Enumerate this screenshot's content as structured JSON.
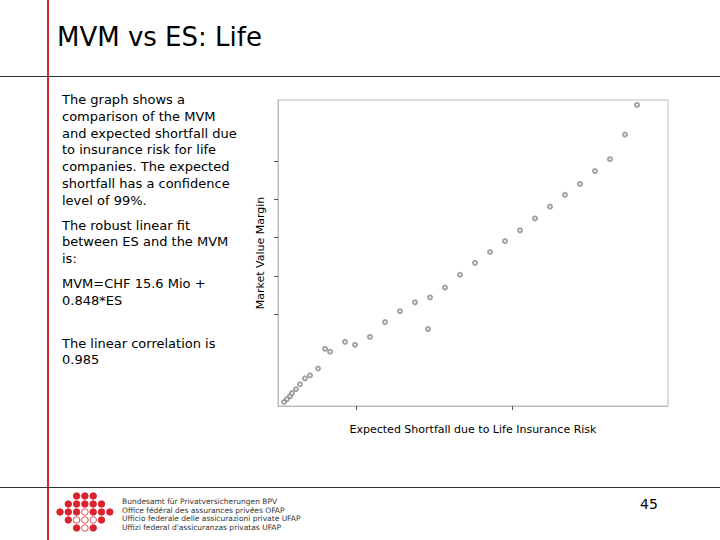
{
  "slide": {
    "title": "MVM vs ES: Life",
    "paragraphs": [
      "The graph shows a comparison of the MVM and expected shortfall due to insurance risk for life companies. The expected shortfall has a confidence level of 99%.",
      "The robust linear fit between ES and the MVM is:",
      "MVM=CHF 15.6 Mio + 0.848*ES",
      "The linear correlation is 0.985"
    ],
    "page_number": "45",
    "logo_lines": [
      "Bundesamt für Privatversicherungen BPV",
      "Office fédéral des assurances privées OFAP",
      "Ufficio federale delle assicurazioni private UFAP",
      "Uffizi federal d'assicuranzas privatas UFAP"
    ]
  },
  "chart_data": {
    "type": "scatter",
    "x_label": "Expected Shortfall due to Life Insurance Risk",
    "y_label": "Market Value Margin",
    "x": [
      1077,
      1115,
      1154,
      1179,
      1231,
      1282,
      1346,
      1410,
      1513,
      1603,
      1667,
      1859,
      1987,
      2179,
      2372,
      2564,
      2923,
      2949,
      3333,
      3718,
      4103,
      4487,
      4872,
      5256,
      5603,
      5449,
      5064,
      4679,
      4295,
      3910,
      3526,
      3141,
      2756
    ],
    "values": [
      852,
      890,
      929,
      968,
      1019,
      1084,
      1161,
      1200,
      1290,
      1548,
      1510,
      1639,
      1600,
      1703,
      1897,
      2039,
      1806,
      2219,
      2516,
      2813,
      3097,
      3406,
      3703,
      4026,
      4735,
      4348,
      3871,
      3561,
      3252,
      2955,
      2671,
      2348,
      2155
    ],
    "color": "#8c8c8c",
    "marker": "open_circle",
    "xlim": [
      1000,
      6000
    ],
    "ylim": [
      800,
      4800
    ],
    "xticks": [
      2000,
      4000
    ],
    "yticks": [
      2000,
      2500,
      3000,
      3500,
      4000
    ],
    "tick_labels": false,
    "grid": false
  }
}
